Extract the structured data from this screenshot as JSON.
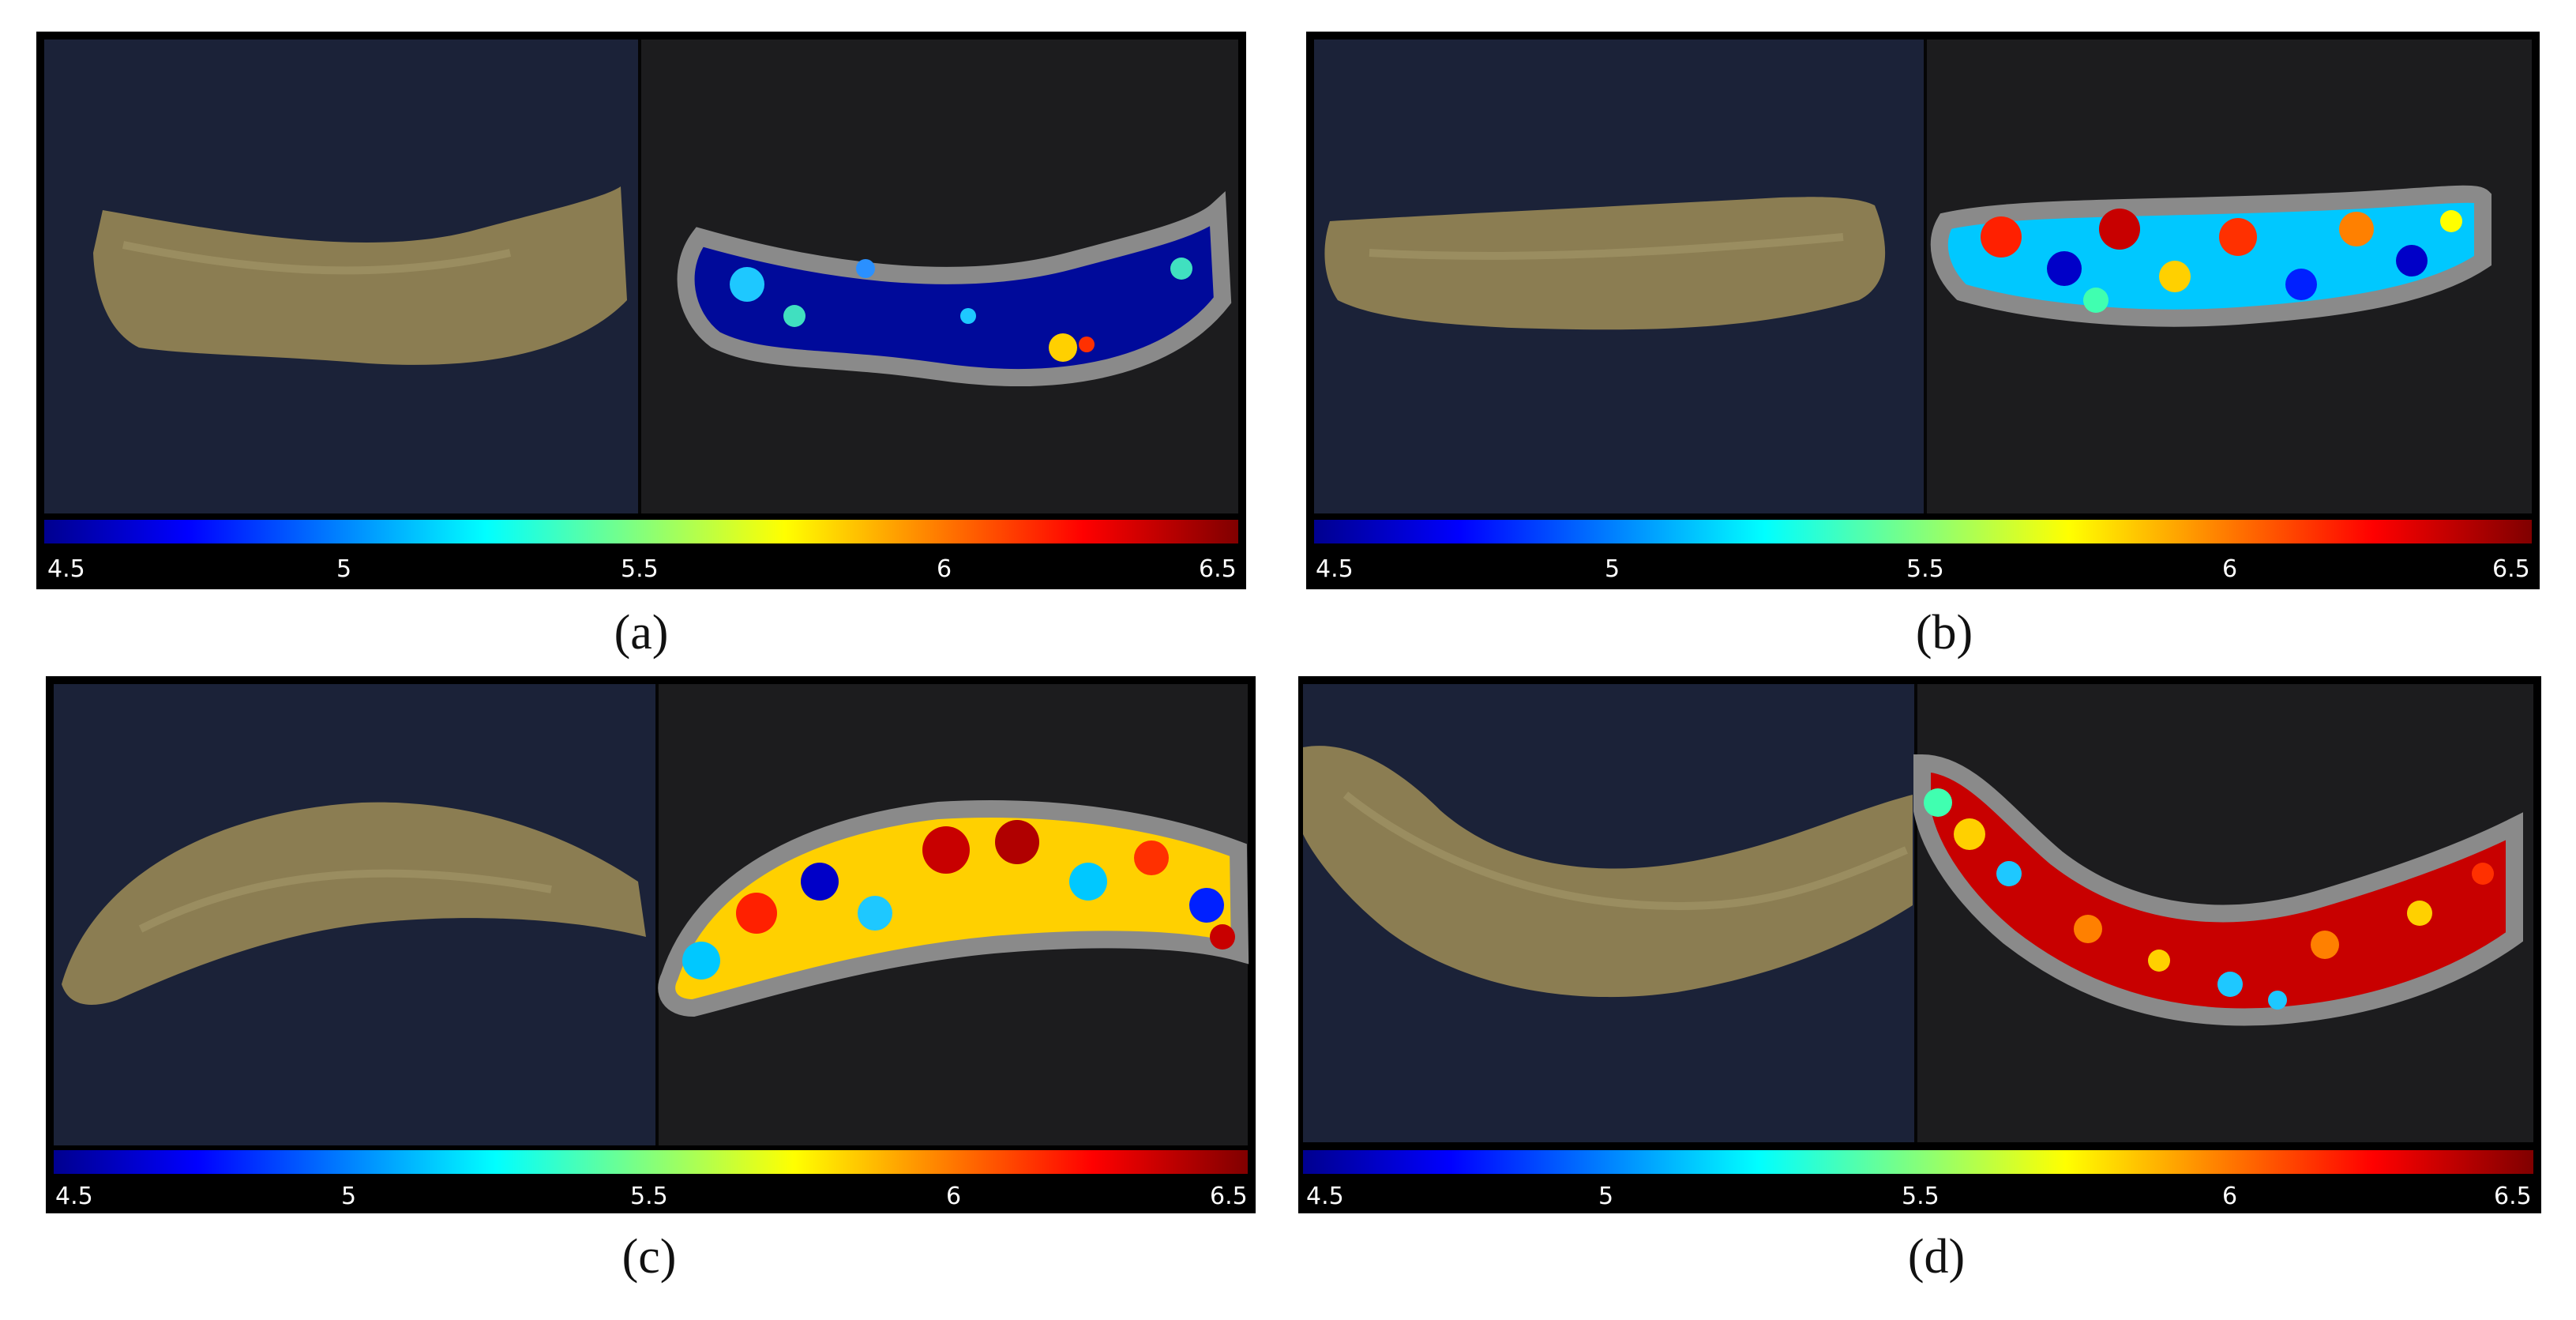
{
  "colorbar": {
    "ticks": [
      "4.5",
      "5",
      "5.5",
      "6",
      "6.5"
    ],
    "min": 4.5,
    "max": 6.5,
    "colormap": "jet"
  },
  "colors": {
    "photo_background": "#1b2238",
    "map_background": "#1c1c1e",
    "sausage_skin": "#8b7d52",
    "halo": "#8a8a8a"
  },
  "panels": [
    {
      "caption": "(a)",
      "dominant_level": "low"
    },
    {
      "caption": "(b)",
      "dominant_level": "mixed"
    },
    {
      "caption": "(c)",
      "dominant_level": "mixed-high"
    },
    {
      "caption": "(d)",
      "dominant_level": "high"
    }
  ]
}
